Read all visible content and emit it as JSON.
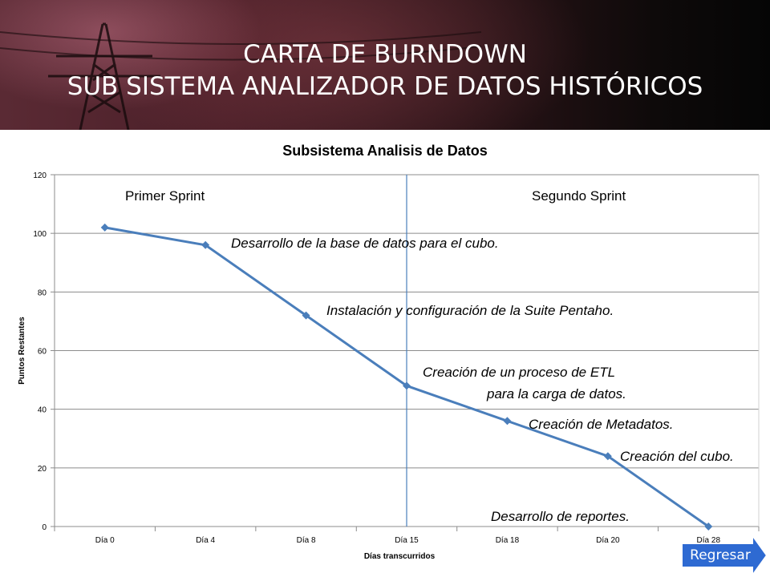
{
  "header": {
    "title_line1": "CARTA DE BURNDOWN",
    "title_line2": "SUB SISTEMA ANALIZADOR DE DATOS HISTÓRICOS"
  },
  "chart_data": {
    "type": "line",
    "title": "Subsistema Analisis de Datos",
    "xlabel": "Días transcurridos",
    "ylabel": "Puntos Restantes",
    "categories": [
      "Día 0",
      "Día 4",
      "Día 8",
      "Día 15",
      "Día 18",
      "Día 20",
      "Día 28"
    ],
    "series": [
      {
        "values": [
          102,
          96,
          72,
          48,
          36,
          24,
          0
        ]
      }
    ],
    "ylim": [
      0,
      120
    ],
    "yticks": [
      0,
      20,
      40,
      60,
      80,
      100,
      120
    ],
    "grid": true,
    "line_color": "#4a7ebb",
    "sprint_divider_category": "Día 15",
    "sprint_labels": [
      "Primer Sprint",
      "Segundo Sprint"
    ],
    "annotations": [
      "Desarrollo de la base de datos para el cubo.",
      "Instalación y configuración de la Suite Pentaho.",
      "Creación de un proceso de ETL",
      "para la carga de datos.",
      "Creación de Metadatos.",
      "Creación del cubo.",
      "Desarrollo de reportes."
    ]
  },
  "nav": {
    "back_label": "Regresar",
    "button_color": "#2e6ad2"
  }
}
